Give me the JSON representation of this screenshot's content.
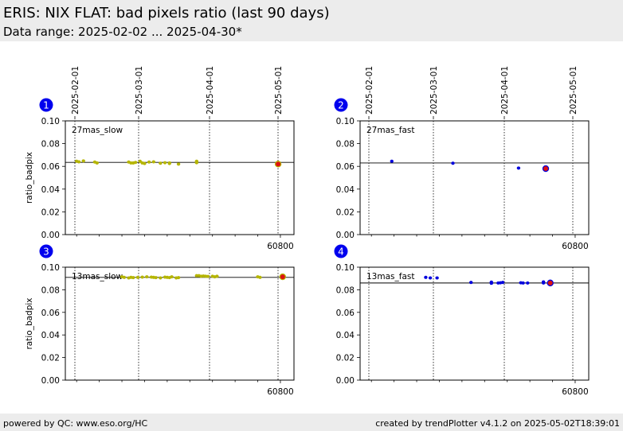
{
  "header": {
    "title": "ERIS: NIX FLAT: bad pixels ratio (last 90 days)",
    "subtitle": "Data range: 2025-02-02 ... 2025-04-30*"
  },
  "footer": {
    "left": "powered by QC: www.eso.org/HC",
    "right": "created by trendPlotter v4.1.2 on 2025-05-02T18:39:01"
  },
  "colors": {
    "slow_points": "#b5b500",
    "fast_points": "#0000dd",
    "latest_point": "#dd1111",
    "badge": "#0000ee"
  },
  "chart_data": [
    {
      "type": "scatter",
      "panel_number": "1",
      "label": "27mas_slow",
      "ylabel": "ratio_badpix",
      "xlim": [
        60705,
        60806
      ],
      "ylim": [
        0,
        0.1
      ],
      "yticks": [
        "0.00",
        "0.02",
        "0.04",
        "0.06",
        "0.08",
        "0.10"
      ],
      "xtick_label": "60800",
      "date_ticks": [
        "2025-02-01",
        "2025-03-01",
        "2025-04-01",
        "2025-05-01"
      ],
      "reference_line": 0.0635,
      "point_color": "#b5b500",
      "points": [
        [
          60710,
          0.0645
        ],
        [
          60711,
          0.064
        ],
        [
          60713,
          0.0648
        ],
        [
          60718,
          0.0638
        ],
        [
          60719,
          0.063
        ],
        [
          60733,
          0.0638
        ],
        [
          60734,
          0.063
        ],
        [
          60735,
          0.063
        ],
        [
          60736,
          0.0635
        ],
        [
          60738,
          0.0645
        ],
        [
          60739,
          0.063
        ],
        [
          60740,
          0.0625
        ],
        [
          60742,
          0.0638
        ],
        [
          60744,
          0.064
        ],
        [
          60747,
          0.0628
        ],
        [
          60749,
          0.0632
        ],
        [
          60751,
          0.0625
        ],
        [
          60751,
          0.063
        ],
        [
          60755,
          0.062
        ],
        [
          60763,
          0.0645
        ],
        [
          60763,
          0.0632
        ]
      ],
      "latest": [
        60799,
        0.062
      ]
    },
    {
      "type": "scatter",
      "panel_number": "2",
      "label": "27mas_fast",
      "ylabel": "",
      "xlim": [
        60705,
        60806
      ],
      "ylim": [
        0,
        0.1
      ],
      "yticks": [
        "0.00",
        "0.02",
        "0.04",
        "0.06",
        "0.08",
        "0.10"
      ],
      "xtick_label": "60800",
      "date_ticks": [
        "2025-02-01",
        "2025-03-01",
        "2025-04-01",
        "2025-05-01"
      ],
      "reference_line": 0.063,
      "point_color": "#0000dd",
      "points": [
        [
          60719,
          0.0645
        ],
        [
          60746,
          0.0628
        ],
        [
          60775,
          0.0585
        ]
      ],
      "latest": [
        60787,
        0.058
      ]
    },
    {
      "type": "scatter",
      "panel_number": "3",
      "label": "13mas_slow",
      "ylabel": "ratio_badpix",
      "xlim": [
        60705,
        60806
      ],
      "ylim": [
        0,
        0.1
      ],
      "yticks": [
        "0.00",
        "0.02",
        "0.04",
        "0.06",
        "0.08",
        "0.10"
      ],
      "xtick_label": "60800",
      "date_ticks": [
        "2025-02-01",
        "2025-03-01",
        "2025-04-01",
        "2025-05-01"
      ],
      "reference_line": 0.091,
      "point_color": "#b5b500",
      "points": [
        [
          60730,
          0.0915
        ],
        [
          60731,
          0.091
        ],
        [
          60733,
          0.0905
        ],
        [
          60734,
          0.091
        ],
        [
          60735,
          0.0908
        ],
        [
          60737,
          0.091
        ],
        [
          60739,
          0.0912
        ],
        [
          60741,
          0.0915
        ],
        [
          60743,
          0.0912
        ],
        [
          60744,
          0.091
        ],
        [
          60745,
          0.0908
        ],
        [
          60747,
          0.0905
        ],
        [
          60749,
          0.0912
        ],
        [
          60750,
          0.091
        ],
        [
          60751,
          0.0908
        ],
        [
          60752,
          0.0915
        ],
        [
          60754,
          0.0905
        ],
        [
          60755,
          0.0908
        ],
        [
          60763,
          0.0925
        ],
        [
          60764,
          0.0925
        ],
        [
          60765,
          0.092
        ],
        [
          60766,
          0.0922
        ],
        [
          60767,
          0.092
        ],
        [
          60768,
          0.0918
        ],
        [
          60770,
          0.092
        ],
        [
          60771,
          0.0915
        ],
        [
          60772,
          0.092
        ],
        [
          60790,
          0.0915
        ],
        [
          60791,
          0.091
        ]
      ],
      "latest": [
        60801,
        0.0915
      ]
    },
    {
      "type": "scatter",
      "panel_number": "4",
      "label": "13mas_fast",
      "ylabel": "",
      "xlim": [
        60705,
        60806
      ],
      "ylim": [
        0,
        0.1
      ],
      "yticks": [
        "0.00",
        "0.02",
        "0.04",
        "0.06",
        "0.08",
        "0.10"
      ],
      "xtick_label": "60800",
      "date_ticks": [
        "2025-02-01",
        "2025-03-01",
        "2025-04-01",
        "2025-05-01"
      ],
      "reference_line": 0.086,
      "point_color": "#0000dd",
      "points": [
        [
          60734,
          0.091
        ],
        [
          60736,
          0.0905
        ],
        [
          60739,
          0.0905
        ],
        [
          60754,
          0.0865
        ],
        [
          60763,
          0.0868
        ],
        [
          60763,
          0.0858
        ],
        [
          60766,
          0.086
        ],
        [
          60767,
          0.0862
        ],
        [
          60768,
          0.0865
        ],
        [
          60776,
          0.0862
        ],
        [
          60777,
          0.086
        ],
        [
          60779,
          0.086
        ],
        [
          60786,
          0.087
        ],
        [
          60786,
          0.086
        ],
        [
          60789,
          0.0875
        ]
      ],
      "latest": [
        60789,
        0.086
      ]
    }
  ]
}
